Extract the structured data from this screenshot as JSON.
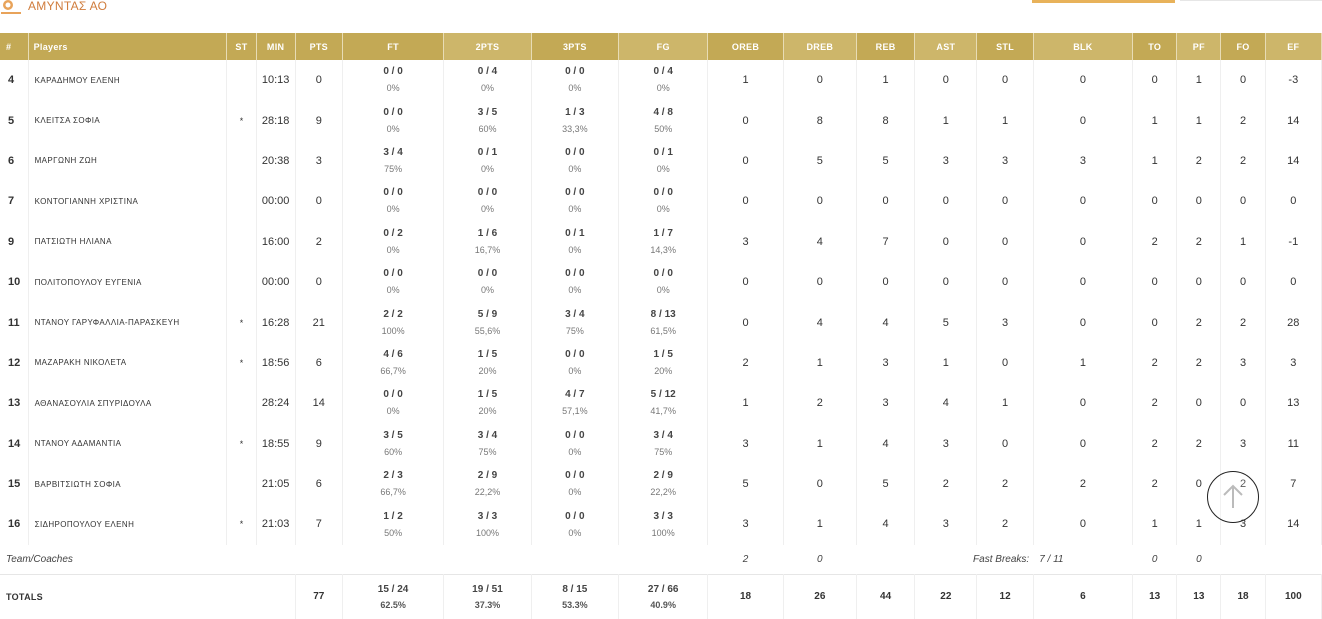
{
  "team": {
    "name": "ΑΜΥΝΤΑΣ ΑΟ",
    "logo_icon": "team-crest-icon"
  },
  "colors": {
    "header": "#c3a955",
    "header_alt": "#cdb66a",
    "accent": "#d07c3c"
  },
  "columns": [
    "#",
    "Players",
    "ST",
    "MIN",
    "PTS",
    "FT",
    "2PTS",
    "3PTS",
    "FG",
    "OREB",
    "DREB",
    "REB",
    "AST",
    "STL",
    "BLK",
    "TO",
    "PF",
    "FO",
    "EF"
  ],
  "players": [
    {
      "no": "4",
      "name": "ΚΑΡΑΔΗΜΟΥ ΕΛΕΝΗ",
      "st": "",
      "min": "10:13",
      "pts": "0",
      "ft_m": "0 / 0",
      "ft_p": "0%",
      "p2_m": "0 / 4",
      "p2_p": "0%",
      "p3_m": "0 / 0",
      "p3_p": "0%",
      "fg_m": "0 / 4",
      "fg_p": "0%",
      "oreb": "1",
      "dreb": "0",
      "reb": "1",
      "ast": "0",
      "stl": "0",
      "blk": "0",
      "to": "0",
      "pf": "1",
      "fo": "0",
      "ef": "-3"
    },
    {
      "no": "5",
      "name": "ΚΛΕΙΤΣΑ ΣΟΦΙΑ",
      "st": "*",
      "min": "28:18",
      "pts": "9",
      "ft_m": "0 / 0",
      "ft_p": "0%",
      "p2_m": "3 / 5",
      "p2_p": "60%",
      "p3_m": "1 / 3",
      "p3_p": "33,3%",
      "fg_m": "4 / 8",
      "fg_p": "50%",
      "oreb": "0",
      "dreb": "8",
      "reb": "8",
      "ast": "1",
      "stl": "1",
      "blk": "0",
      "to": "1",
      "pf": "1",
      "fo": "2",
      "ef": "14"
    },
    {
      "no": "6",
      "name": "ΜΑΡΓΩΝΗ ΖΩΗ",
      "st": "",
      "min": "20:38",
      "pts": "3",
      "ft_m": "3 / 4",
      "ft_p": "75%",
      "p2_m": "0 / 1",
      "p2_p": "0%",
      "p3_m": "0 / 0",
      "p3_p": "0%",
      "fg_m": "0 / 1",
      "fg_p": "0%",
      "oreb": "0",
      "dreb": "5",
      "reb": "5",
      "ast": "3",
      "stl": "3",
      "blk": "3",
      "to": "1",
      "pf": "2",
      "fo": "2",
      "ef": "14"
    },
    {
      "no": "7",
      "name": "ΚΟΝΤΟΓΙΑΝΝΗ ΧΡΙΣΤΙΝΑ",
      "st": "",
      "min": "00:00",
      "pts": "0",
      "ft_m": "0 / 0",
      "ft_p": "0%",
      "p2_m": "0 / 0",
      "p2_p": "0%",
      "p3_m": "0 / 0",
      "p3_p": "0%",
      "fg_m": "0 / 0",
      "fg_p": "0%",
      "oreb": "0",
      "dreb": "0",
      "reb": "0",
      "ast": "0",
      "stl": "0",
      "blk": "0",
      "to": "0",
      "pf": "0",
      "fo": "0",
      "ef": "0"
    },
    {
      "no": "9",
      "name": "ΠΑΤΣΙΩΤΗ ΗΛΙΑΝΑ",
      "st": "",
      "min": "16:00",
      "pts": "2",
      "ft_m": "0 / 2",
      "ft_p": "0%",
      "p2_m": "1 / 6",
      "p2_p": "16,7%",
      "p3_m": "0 / 1",
      "p3_p": "0%",
      "fg_m": "1 / 7",
      "fg_p": "14,3%",
      "oreb": "3",
      "dreb": "4",
      "reb": "7",
      "ast": "0",
      "stl": "0",
      "blk": "0",
      "to": "2",
      "pf": "2",
      "fo": "1",
      "ef": "-1"
    },
    {
      "no": "10",
      "name": "ΠΟΛΙΤΟΠΟΥΛΟΥ ΕΥΓΕΝΙΑ",
      "st": "",
      "min": "00:00",
      "pts": "0",
      "ft_m": "0 / 0",
      "ft_p": "0%",
      "p2_m": "0 / 0",
      "p2_p": "0%",
      "p3_m": "0 / 0",
      "p3_p": "0%",
      "fg_m": "0 / 0",
      "fg_p": "0%",
      "oreb": "0",
      "dreb": "0",
      "reb": "0",
      "ast": "0",
      "stl": "0",
      "blk": "0",
      "to": "0",
      "pf": "0",
      "fo": "0",
      "ef": "0"
    },
    {
      "no": "11",
      "name": "ΝΤΑΝΟΥ ΓΑΡΥΦΑΛΛΙΑ-ΠΑΡΑΣΚΕΥΗ",
      "st": "*",
      "min": "16:28",
      "pts": "21",
      "ft_m": "2 / 2",
      "ft_p": "100%",
      "p2_m": "5 / 9",
      "p2_p": "55,6%",
      "p3_m": "3 / 4",
      "p3_p": "75%",
      "fg_m": "8 / 13",
      "fg_p": "61,5%",
      "oreb": "0",
      "dreb": "4",
      "reb": "4",
      "ast": "5",
      "stl": "3",
      "blk": "0",
      "to": "0",
      "pf": "2",
      "fo": "2",
      "ef": "28"
    },
    {
      "no": "12",
      "name": "ΜΑΖΑΡΑΚΗ ΝΙΚΟΛΕΤΑ",
      "st": "*",
      "min": "18:56",
      "pts": "6",
      "ft_m": "4 / 6",
      "ft_p": "66,7%",
      "p2_m": "1 / 5",
      "p2_p": "20%",
      "p3_m": "0 / 0",
      "p3_p": "0%",
      "fg_m": "1 / 5",
      "fg_p": "20%",
      "oreb": "2",
      "dreb": "1",
      "reb": "3",
      "ast": "1",
      "stl": "0",
      "blk": "1",
      "to": "2",
      "pf": "2",
      "fo": "3",
      "ef": "3"
    },
    {
      "no": "13",
      "name": "ΑΘΑΝΑΣΟΥΛΙΑ ΣΠΥΡΙΔΟΥΛΑ",
      "st": "",
      "min": "28:24",
      "pts": "14",
      "ft_m": "0 / 0",
      "ft_p": "0%",
      "p2_m": "1 / 5",
      "p2_p": "20%",
      "p3_m": "4 / 7",
      "p3_p": "57,1%",
      "fg_m": "5 / 12",
      "fg_p": "41,7%",
      "oreb": "1",
      "dreb": "2",
      "reb": "3",
      "ast": "4",
      "stl": "1",
      "blk": "0",
      "to": "2",
      "pf": "0",
      "fo": "0",
      "ef": "13"
    },
    {
      "no": "14",
      "name": "ΝΤΑΝΟΥ ΑΔΑΜΑΝΤΙΑ",
      "st": "*",
      "min": "18:55",
      "pts": "9",
      "ft_m": "3 / 5",
      "ft_p": "60%",
      "p2_m": "3 / 4",
      "p2_p": "75%",
      "p3_m": "0 / 0",
      "p3_p": "0%",
      "fg_m": "3 / 4",
      "fg_p": "75%",
      "oreb": "3",
      "dreb": "1",
      "reb": "4",
      "ast": "3",
      "stl": "0",
      "blk": "0",
      "to": "2",
      "pf": "2",
      "fo": "3",
      "ef": "11"
    },
    {
      "no": "15",
      "name": "ΒΑΡΒΙΤΣΙΩΤΗ ΣΟΦΙΑ",
      "st": "",
      "min": "21:05",
      "pts": "6",
      "ft_m": "2 / 3",
      "ft_p": "66,7%",
      "p2_m": "2 / 9",
      "p2_p": "22,2%",
      "p3_m": "0 / 0",
      "p3_p": "0%",
      "fg_m": "2 / 9",
      "fg_p": "22,2%",
      "oreb": "5",
      "dreb": "0",
      "reb": "5",
      "ast": "2",
      "stl": "2",
      "blk": "2",
      "to": "2",
      "pf": "0",
      "fo": "2",
      "ef": "7"
    },
    {
      "no": "16",
      "name": "ΣΙΔΗΡΟΠΟΥΛΟΥ ΕΛΕΝΗ",
      "st": "*",
      "min": "21:03",
      "pts": "7",
      "ft_m": "1 / 2",
      "ft_p": "50%",
      "p2_m": "3 / 3",
      "p2_p": "100%",
      "p3_m": "0 / 0",
      "p3_p": "0%",
      "fg_m": "3 / 3",
      "fg_p": "100%",
      "oreb": "3",
      "dreb": "1",
      "reb": "4",
      "ast": "3",
      "stl": "2",
      "blk": "0",
      "to": "1",
      "pf": "1",
      "fo": "3",
      "ef": "14"
    }
  ],
  "team_coaches": {
    "label": "Team/Coaches",
    "oreb": "2",
    "dreb": "0",
    "fast_breaks_label": "Fast Breaks:",
    "fast_breaks_value": "7 / 11",
    "to": "0",
    "pf": "0"
  },
  "totals": {
    "label": "TOTALS",
    "pts": "77",
    "ft_m": "15 / 24",
    "ft_p": "62.5%",
    "p2_m": "19 / 51",
    "p2_p": "37.3%",
    "p3_m": "8 / 15",
    "p3_p": "53.3%",
    "fg_m": "27 / 66",
    "fg_p": "40.9%",
    "oreb": "18",
    "dreb": "26",
    "reb": "44",
    "ast": "22",
    "stl": "12",
    "blk": "6",
    "to": "13",
    "pf": "13",
    "fo": "18",
    "ef": "100"
  },
  "scroll_top": {
    "icon": "arrow-up-icon"
  }
}
